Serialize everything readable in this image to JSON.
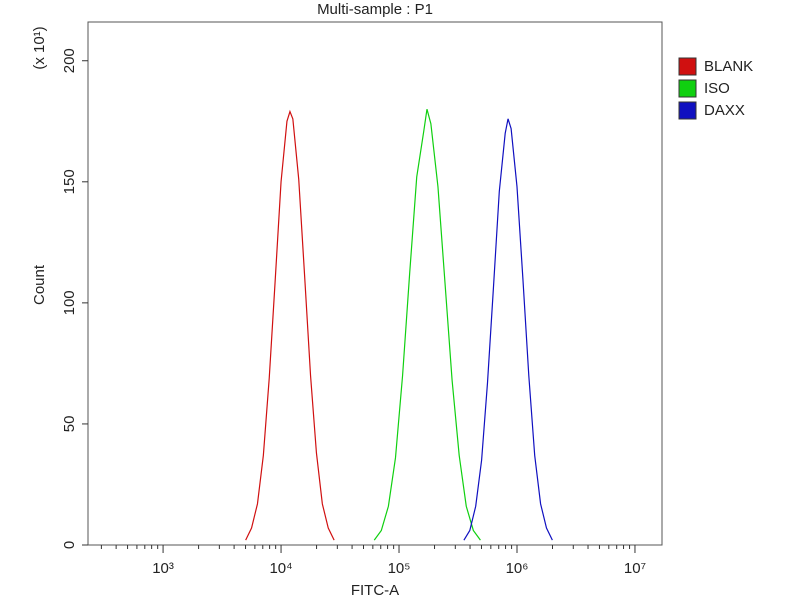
{
  "chart_data": {
    "type": "line",
    "title": "Multi-sample : P1",
    "x_label": "FITC-A",
    "y_label": "Count",
    "y_multiplier": "(x 10¹)",
    "x_scale": "log",
    "xlim": [
      231,
      16950000
    ],
    "ylim": [
      0,
      216
    ],
    "xticks": [
      {
        "value": 1000,
        "label": "10³"
      },
      {
        "value": 10000,
        "label": "10⁴"
      },
      {
        "value": 100000,
        "label": "10⁵"
      },
      {
        "value": 1000000,
        "label": "10⁶"
      },
      {
        "value": 10000000,
        "label": "10⁷"
      }
    ],
    "yticks": [
      0,
      50,
      100,
      150,
      200
    ],
    "legend_position": "right",
    "series": [
      {
        "name": "BLANK",
        "color": "#d01010",
        "x": [
          5012,
          5623,
          6310,
          7079,
          7943,
          8913,
          10000,
          11220,
          11900,
          12589,
          14125,
          15849,
          17783,
          19953,
          22387,
          25119,
          28184
        ],
        "values": [
          2,
          7,
          17,
          37,
          69,
          109,
          150,
          175,
          179,
          176,
          151,
          111,
          70,
          38,
          17,
          7,
          2
        ]
      },
      {
        "name": "ISO",
        "color": "#10d010",
        "x": [
          61660,
          70790,
          81280,
          93330,
          107200,
          123000,
          141300,
          162200,
          172600,
          186200,
          213800,
          245500,
          281800,
          323600,
          371500,
          426600,
          489800
        ],
        "values": [
          2,
          6,
          16,
          36,
          70,
          112,
          152,
          171,
          180,
          174,
          148,
          108,
          68,
          37,
          16,
          6,
          2
        ]
      },
      {
        "name": "DAXX",
        "color": "#1010c0",
        "x": [
          354800,
          398100,
          446700,
          501200,
          562300,
          631000,
          707900,
          794300,
          839500,
          891300,
          1000000,
          1122000,
          1259000,
          1413000,
          1585000,
          1778000,
          1995000
        ],
        "values": [
          2,
          6,
          16,
          35,
          67,
          106,
          146,
          170,
          176,
          172,
          148,
          110,
          70,
          37,
          17,
          7,
          2
        ]
      }
    ]
  }
}
